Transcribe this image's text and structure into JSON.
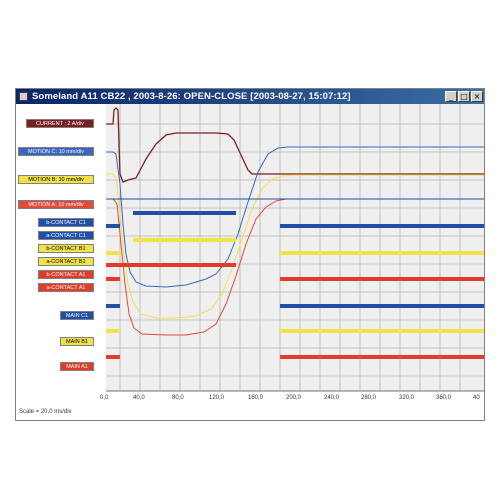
{
  "window": {
    "title": "Someland A11 CB22 , 2003-8-26: OPEN-CLOSE  [2003-08-27, 15:07:12]",
    "buttons": {
      "minimize": "_",
      "maximize": "□",
      "close": "×"
    }
  },
  "labels": {
    "current": "CURRENT : 2 A/div",
    "motion_c": "MOTION C: 10 mm/div",
    "motion_b": "MOTION B: 10 mm/div",
    "motion_a": "MOTION A: 10 mm/div",
    "b_contact_c1": "b-CONTACT C1",
    "a_contact_c1": "a-CONTACT C1",
    "b_contact_b1": "b-CONTACT B1",
    "a_contact_b1": "a-CONTACT B1",
    "b_contact_a1": "b-CONTACT A1",
    "a_contact_a1": "a-CONTACT A1",
    "main_c1": "MAIN C1",
    "main_b1": "MAIN B1",
    "main_a1": "MAIN A1"
  },
  "colors": {
    "current": "#7a1f1f",
    "motion_c": "#3a66c0",
    "motion_b": "#f2e24a",
    "motion_a": "#e04b3a",
    "contact_c": "#1f4fa8",
    "contact_b": "#f2e24a",
    "contact_a": "#e03c2c",
    "grid": "#b4b4b4",
    "plot_bg": "#efefef"
  },
  "x_axis": {
    "ticks": [
      "0,0",
      "40,0",
      "80,0",
      "120,0",
      "160,0",
      "200,0",
      "240,0",
      "280,0",
      "320,0",
      "360,0",
      "40"
    ]
  },
  "scale_text": "Scale = 20,0 ms/div"
}
